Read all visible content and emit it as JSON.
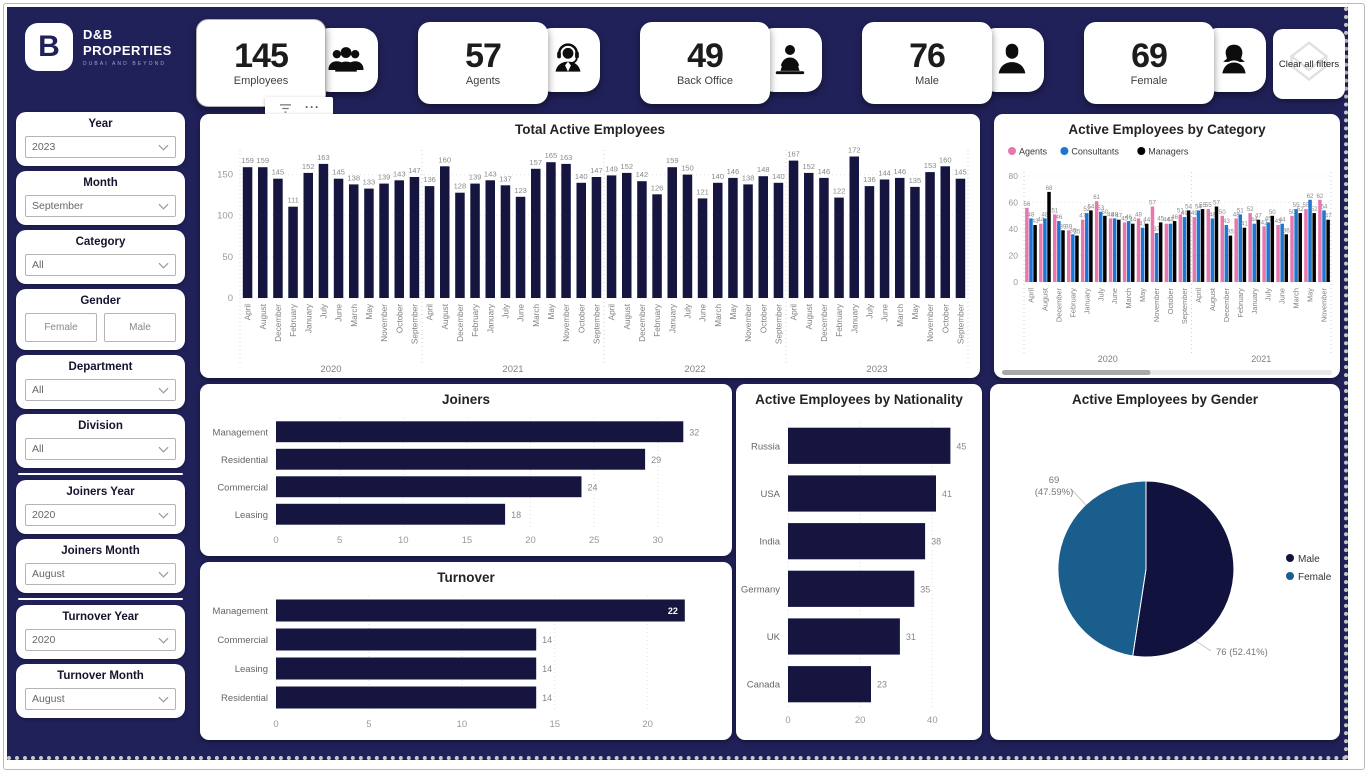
{
  "header": {
    "logo": {
      "mark": "B",
      "line1": "D&B",
      "line2": "PROPERTIES",
      "tagline": "DUBAI AND BEYOND"
    },
    "kpis": [
      {
        "value": "145",
        "label": "Employees",
        "icon": "employees-icon"
      },
      {
        "value": "57",
        "label": "Agents",
        "icon": "agent-headset-icon"
      },
      {
        "value": "49",
        "label": "Back Office",
        "icon": "back-office-icon"
      },
      {
        "value": "76",
        "label": "Male",
        "icon": "male-icon"
      },
      {
        "value": "69",
        "label": "Female",
        "icon": "female-icon"
      }
    ],
    "clear_filters_label": "Clear all filters",
    "toolbar": {
      "more_glyph": "···"
    }
  },
  "sidebar": {
    "dividers_after": [
      5,
      7
    ],
    "filters": [
      {
        "label": "Year",
        "type": "dropdown",
        "value": "2023"
      },
      {
        "label": "Month",
        "type": "dropdown",
        "value": "September"
      },
      {
        "label": "Category",
        "type": "dropdown",
        "value": "All"
      },
      {
        "label": "Gender",
        "type": "buttons",
        "options": [
          "Female",
          "Male"
        ]
      },
      {
        "label": "Department",
        "type": "dropdown",
        "value": "All"
      },
      {
        "label": "Division",
        "type": "dropdown",
        "value": "All"
      },
      {
        "label": "Joiners Year",
        "type": "dropdown",
        "value": "2020"
      },
      {
        "label": "Joiners Month",
        "type": "dropdown",
        "value": "August"
      },
      {
        "label": "Turnover Year",
        "type": "dropdown",
        "value": "2020"
      },
      {
        "label": "Turnover Month",
        "type": "dropdown",
        "value": "August"
      }
    ]
  },
  "colors": {
    "background": "#21215A",
    "bar_navy": "#15153F",
    "agents_pink": "#E877AE",
    "consultants_blue": "#1C76D2",
    "managers_black": "#000000",
    "pie_male": "#12123F",
    "pie_female": "#1A5E8E"
  },
  "chart_data": [
    {
      "id": "total-active-employees",
      "type": "bar",
      "title": "Total Active Employees",
      "ylim": [
        0,
        175
      ],
      "yticks": [
        0,
        50,
        100,
        150
      ],
      "bar_color": "#15153F",
      "month_order": [
        "April",
        "August",
        "December",
        "February",
        "January",
        "July",
        "June",
        "March",
        "May",
        "November",
        "October",
        "September"
      ],
      "groups": [
        {
          "year": "2020",
          "values": [
            159,
            159,
            145,
            111,
            152,
            163,
            145,
            138,
            133,
            139,
            143,
            147
          ]
        },
        {
          "year": "2021",
          "values": [
            136,
            160,
            128,
            139,
            143,
            137,
            123,
            157,
            165,
            163,
            140,
            147
          ]
        },
        {
          "year": "2022",
          "values": [
            149,
            152,
            142,
            126,
            159,
            150,
            121,
            140,
            146,
            138,
            148,
            140
          ]
        },
        {
          "year": "2023",
          "values": [
            167,
            152,
            146,
            122,
            172,
            136,
            144,
            146,
            135,
            153,
            160,
            145
          ]
        }
      ]
    },
    {
      "id": "active-by-category",
      "type": "clustered-bar",
      "title": "Active Employees by Category",
      "ylim": [
        0,
        80
      ],
      "yticks": [
        0,
        20,
        40,
        60,
        80
      ],
      "legend_position": "top-left",
      "month_order": [
        "April",
        "August",
        "December",
        "February",
        "January",
        "July",
        "June",
        "March",
        "May",
        "November",
        "October",
        "September"
      ],
      "series": [
        {
          "name": "Agents",
          "color": "#E877AE"
        },
        {
          "name": "Consultants",
          "color": "#1C76D2"
        },
        {
          "name": "Managers",
          "color": "#000000"
        }
      ],
      "groups": [
        {
          "year": "2020",
          "values": [
            [
              56,
              48,
              43
            ],
            [
              44,
              48,
              68
            ],
            [
              51,
              46,
              39
            ],
            [
              39,
              36,
              35
            ],
            [
              47,
              52,
              54
            ],
            [
              61,
              53,
              50
            ],
            [
              48,
              48,
              47
            ],
            [
              45,
              46,
              44
            ],
            [
              48,
              41,
              44
            ],
            [
              57,
              37,
              45
            ],
            [
              44,
              44,
              46
            ],
            [
              51,
              49,
              54
            ]
          ]
        },
        {
          "year": "2021",
          "values": [
            [
              49,
              54,
              55
            ],
            [
              55,
              48,
              57
            ],
            [
              50,
              43,
              35
            ],
            [
              48,
              51,
              41
            ],
            [
              52,
              44,
              47
            ],
            [
              42,
              45,
              50
            ],
            [
              43,
              44,
              36
            ],
            [
              50,
              55,
              52
            ],
            [
              55,
              62,
              52
            ],
            [
              62,
              54,
              47
            ]
          ]
        }
      ],
      "scrollbar": {
        "visible": true,
        "thumb_fraction": 0.45
      }
    },
    {
      "id": "joiners",
      "type": "hbar",
      "title": "Joiners",
      "categories": [
        "Management",
        "Residential",
        "Commercial",
        "Leasing"
      ],
      "values": [
        32,
        29,
        24,
        18
      ],
      "xticks": [
        0,
        5,
        10,
        15,
        20,
        25,
        30
      ],
      "bar_color": "#15153F"
    },
    {
      "id": "turnover",
      "type": "hbar",
      "title": "Turnover",
      "categories": [
        "Management",
        "Commercial",
        "Leasing",
        "Residential"
      ],
      "values": [
        22,
        14,
        14,
        14
      ],
      "xticks": [
        0,
        5,
        10,
        15,
        20
      ],
      "bar_color": "#15153F",
      "label_inside_max": true
    },
    {
      "id": "active-by-nationality",
      "type": "hbar",
      "title": "Active Employees by Nationality",
      "categories": [
        "Russia",
        "USA",
        "India",
        "Germany",
        "UK",
        "Canada"
      ],
      "values": [
        45,
        41,
        38,
        35,
        31,
        23
      ],
      "xticks": [
        0,
        20,
        40
      ],
      "bar_color": "#15153F"
    },
    {
      "id": "active-by-gender",
      "type": "pie",
      "title": "Active Employees by Gender",
      "legend_position": "right",
      "slices": [
        {
          "name": "Male",
          "value": 76,
          "label_lines": [
            "76 (52.41%)"
          ],
          "color": "#12123F"
        },
        {
          "name": "Female",
          "value": 69,
          "label_lines": [
            "69",
            "(47.59%)"
          ],
          "color": "#1A5E8E"
        }
      ]
    }
  ]
}
